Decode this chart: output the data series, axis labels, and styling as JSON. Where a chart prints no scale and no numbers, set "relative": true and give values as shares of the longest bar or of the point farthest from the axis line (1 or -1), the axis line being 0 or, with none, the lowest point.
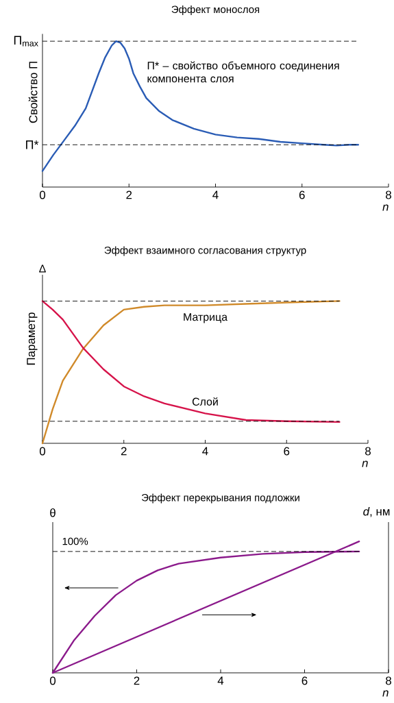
{
  "chart_data": [
    {
      "type": "line",
      "title": "Эффект монослоя",
      "ylabel": "Свойство П",
      "xlabel": "n",
      "relative": true,
      "xlim": [
        0,
        8
      ],
      "xticks": [
        0,
        2,
        4,
        6,
        8
      ],
      "x": [
        0,
        0.25,
        0.5,
        0.75,
        1,
        1.15,
        1.3,
        1.45,
        1.6,
        1.7,
        1.8,
        1.9,
        2.0,
        2.1,
        2.25,
        2.4,
        2.7,
        3,
        3.5,
        4,
        4.5,
        5,
        5.5,
        6,
        6.5,
        6.8,
        7.1,
        7.3
      ],
      "series": [
        {
          "color": "#2a5cb5",
          "values": [
            0.11,
            0.22,
            0.32,
            0.42,
            0.54,
            0.66,
            0.78,
            0.89,
            0.97,
            1.0,
            0.99,
            0.95,
            0.88,
            0.78,
            0.69,
            0.61,
            0.52,
            0.46,
            0.4,
            0.36,
            0.34,
            0.33,
            0.31,
            0.3,
            0.29,
            0.285,
            0.29,
            0.29
          ]
        }
      ],
      "ref_lines": [
        {
          "axis": "y",
          "value": 1,
          "label": "П$_{max}$",
          "line_style": "dashed"
        },
        {
          "axis": "y",
          "value": 0.29,
          "label": "П*",
          "line_style": "dashed"
        }
      ],
      "annotations": [
        "П* – свойство объемного соединения компонента слоя"
      ]
    },
    {
      "type": "line",
      "title": "Эффект взаимного согласования структур",
      "ylabel": "Параметр",
      "xlabel": "n",
      "relative": true,
      "xlim": [
        0,
        8
      ],
      "xticks": [
        0,
        2,
        4,
        6,
        8
      ],
      "x": [
        0,
        0.25,
        0.5,
        1,
        1.5,
        2,
        2.5,
        3,
        4,
        5,
        6,
        7.3
      ],
      "series": [
        {
          "name": "Матрица",
          "color": "#d08a2a",
          "values": [
            0,
            0.24,
            0.44,
            0.665,
            0.83,
            0.94,
            0.96,
            0.97,
            0.97,
            0.98,
            0.99,
            1.0
          ]
        },
        {
          "name": "Слой",
          "color": "#d6134a",
          "values": [
            1,
            0.94,
            0.87,
            0.67,
            0.52,
            0.4,
            0.33,
            0.28,
            0.21,
            0.164,
            0.155,
            0.15
          ]
        }
      ],
      "ref_lines": [
        {
          "axis": "y",
          "value": 1,
          "line_style": "dashed"
        },
        {
          "axis": "y",
          "value": 0.155,
          "line_style": "dashed"
        }
      ],
      "annotations": [
        "Δ"
      ]
    },
    {
      "type": "line",
      "title": "Эффект перекрывания подложки",
      "ylabel": "θ",
      "y2label": "*d*, нм",
      "xlabel": "n",
      "relative": true,
      "xlim": [
        0,
        8
      ],
      "xticks": [
        0,
        2,
        4,
        6,
        8
      ],
      "x": [
        0,
        0.5,
        1,
        1.5,
        2,
        2.5,
        3,
        4,
        5,
        6,
        7.3
      ],
      "series": [
        {
          "color": "#8b1a8b",
          "values": [
            0,
            0.265,
            0.47,
            0.64,
            0.76,
            0.845,
            0.9,
            0.95,
            0.98,
            0.995,
            1.0
          ]
        },
        {
          "color": "#8b1a8b",
          "axis": "y2",
          "x": [
            0,
            7.3
          ],
          "values": [
            0,
            1
          ]
        }
      ],
      "ref_lines": [
        {
          "axis": "y",
          "value": 1,
          "label": "100%",
          "line_style": "dashed"
        }
      ]
    }
  ]
}
